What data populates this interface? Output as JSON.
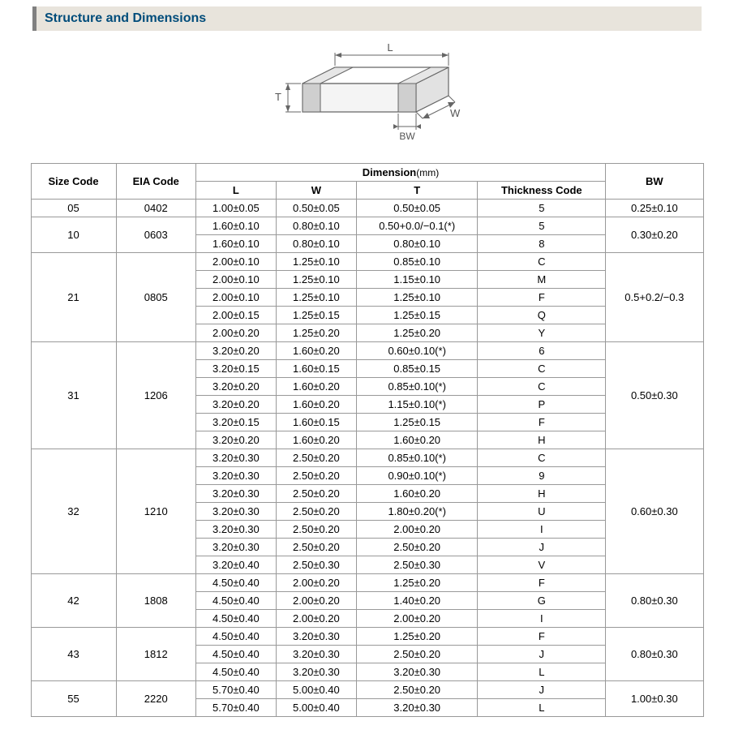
{
  "section_title": "Structure and Dimensions",
  "diagram": {
    "labels": {
      "L": "L",
      "W": "W",
      "T": "T",
      "BW": "BW"
    },
    "stroke": "#666666",
    "fill_top": "#ffffff",
    "fill_side": "#d9d9d9",
    "fill_end": "#bdbdbd",
    "label_color": "#555555"
  },
  "table": {
    "headers": {
      "size_code": "Size Code",
      "eia_code": "EIA Code",
      "dimension": "Dimension",
      "dimension_unit": "(mm)",
      "L": "L",
      "W": "W",
      "T": "T",
      "thickness_code": "Thickness  Code",
      "BW": "BW"
    },
    "groups": [
      {
        "size_code": "05",
        "eia_code": "0402",
        "bw": "0.25±0.10",
        "rows": [
          {
            "L": "1.00±0.05",
            "W": "0.50±0.05",
            "T": "0.50±0.05",
            "tc": "5"
          }
        ]
      },
      {
        "size_code": "10",
        "eia_code": "0603",
        "bw": "0.30±0.20",
        "rows": [
          {
            "L": "1.60±0.10",
            "W": "0.80±0.10",
            "T": "0.50+0.0/−0.1(*)",
            "tc": "5"
          },
          {
            "L": "1.60±0.10",
            "W": "0.80±0.10",
            "T": "0.80±0.10",
            "tc": "8"
          }
        ]
      },
      {
        "size_code": "21",
        "eia_code": "0805",
        "bw": "0.5+0.2/−0.3",
        "rows": [
          {
            "L": "2.00±0.10",
            "W": "1.25±0.10",
            "T": "0.85±0.10",
            "tc": "C"
          },
          {
            "L": "2.00±0.10",
            "W": "1.25±0.10",
            "T": "1.15±0.10",
            "tc": "M"
          },
          {
            "L": "2.00±0.10",
            "W": "1.25±0.10",
            "T": "1.25±0.10",
            "tc": "F"
          },
          {
            "L": "2.00±0.15",
            "W": "1.25±0.15",
            "T": "1.25±0.15",
            "tc": "Q"
          },
          {
            "L": "2.00±0.20",
            "W": "1.25±0.20",
            "T": "1.25±0.20",
            "tc": "Y"
          }
        ]
      },
      {
        "size_code": "31",
        "eia_code": "1206",
        "bw": "0.50±0.30",
        "rows": [
          {
            "L": "3.20±0.20",
            "W": "1.60±0.20",
            "T": "0.60±0.10(*)",
            "tc": "6"
          },
          {
            "L": "3.20±0.15",
            "W": "1.60±0.15",
            "T": "0.85±0.15",
            "tc": "C"
          },
          {
            "L": "3.20±0.20",
            "W": "1.60±0.20",
            "T": "0.85±0.10(*)",
            "tc": "C"
          },
          {
            "L": "3.20±0.20",
            "W": "1.60±0.20",
            "T": "1.15±0.10(*)",
            "tc": "P"
          },
          {
            "L": "3.20±0.15",
            "W": "1.60±0.15",
            "T": "1.25±0.15",
            "tc": "F"
          },
          {
            "L": "3.20±0.20",
            "W": "1.60±0.20",
            "T": "1.60±0.20",
            "tc": "H"
          }
        ]
      },
      {
        "size_code": "32",
        "eia_code": "1210",
        "bw": "0.60±0.30",
        "rows": [
          {
            "L": "3.20±0.30",
            "W": "2.50±0.20",
            "T": "0.85±0.10(*)",
            "tc": "C"
          },
          {
            "L": "3.20±0.30",
            "W": "2.50±0.20",
            "T": "0.90±0.10(*)",
            "tc": "9"
          },
          {
            "L": "3.20±0.30",
            "W": "2.50±0.20",
            "T": "1.60±0.20",
            "tc": "H"
          },
          {
            "L": "3.20±0.30",
            "W": "2.50±0.20",
            "T": "1.80±0.20(*)",
            "tc": "U"
          },
          {
            "L": "3.20±0.30",
            "W": "2.50±0.20",
            "T": "2.00±0.20",
            "tc": "I"
          },
          {
            "L": "3.20±0.30",
            "W": "2.50±0.20",
            "T": "2.50±0.20",
            "tc": "J"
          },
          {
            "L": "3.20±0.40",
            "W": "2.50±0.30",
            "T": "2.50±0.30",
            "tc": "V"
          }
        ]
      },
      {
        "size_code": "42",
        "eia_code": "1808",
        "bw": "0.80±0.30",
        "rows": [
          {
            "L": "4.50±0.40",
            "W": "2.00±0.20",
            "T": "1.25±0.20",
            "tc": "F"
          },
          {
            "L": "4.50±0.40",
            "W": "2.00±0.20",
            "T": "1.40±0.20",
            "tc": "G"
          },
          {
            "L": "4.50±0.40",
            "W": "2.00±0.20",
            "T": "2.00±0.20",
            "tc": "I"
          }
        ]
      },
      {
        "size_code": "43",
        "eia_code": "1812",
        "bw": "0.80±0.30",
        "rows": [
          {
            "L": "4.50±0.40",
            "W": "3.20±0.30",
            "T": "1.25±0.20",
            "tc": "F"
          },
          {
            "L": "4.50±0.40",
            "W": "3.20±0.30",
            "T": "2.50±0.20",
            "tc": "J"
          },
          {
            "L": "4.50±0.40",
            "W": "3.20±0.30",
            "T": "3.20±0.30",
            "tc": "L"
          }
        ]
      },
      {
        "size_code": "55",
        "eia_code": "2220",
        "bw": "1.00±0.30",
        "rows": [
          {
            "L": "5.70±0.40",
            "W": "5.00±0.40",
            "T": "2.50±0.20",
            "tc": "J"
          },
          {
            "L": "5.70±0.40",
            "W": "5.00±0.40",
            "T": "3.20±0.30",
            "tc": "L"
          }
        ]
      }
    ]
  }
}
